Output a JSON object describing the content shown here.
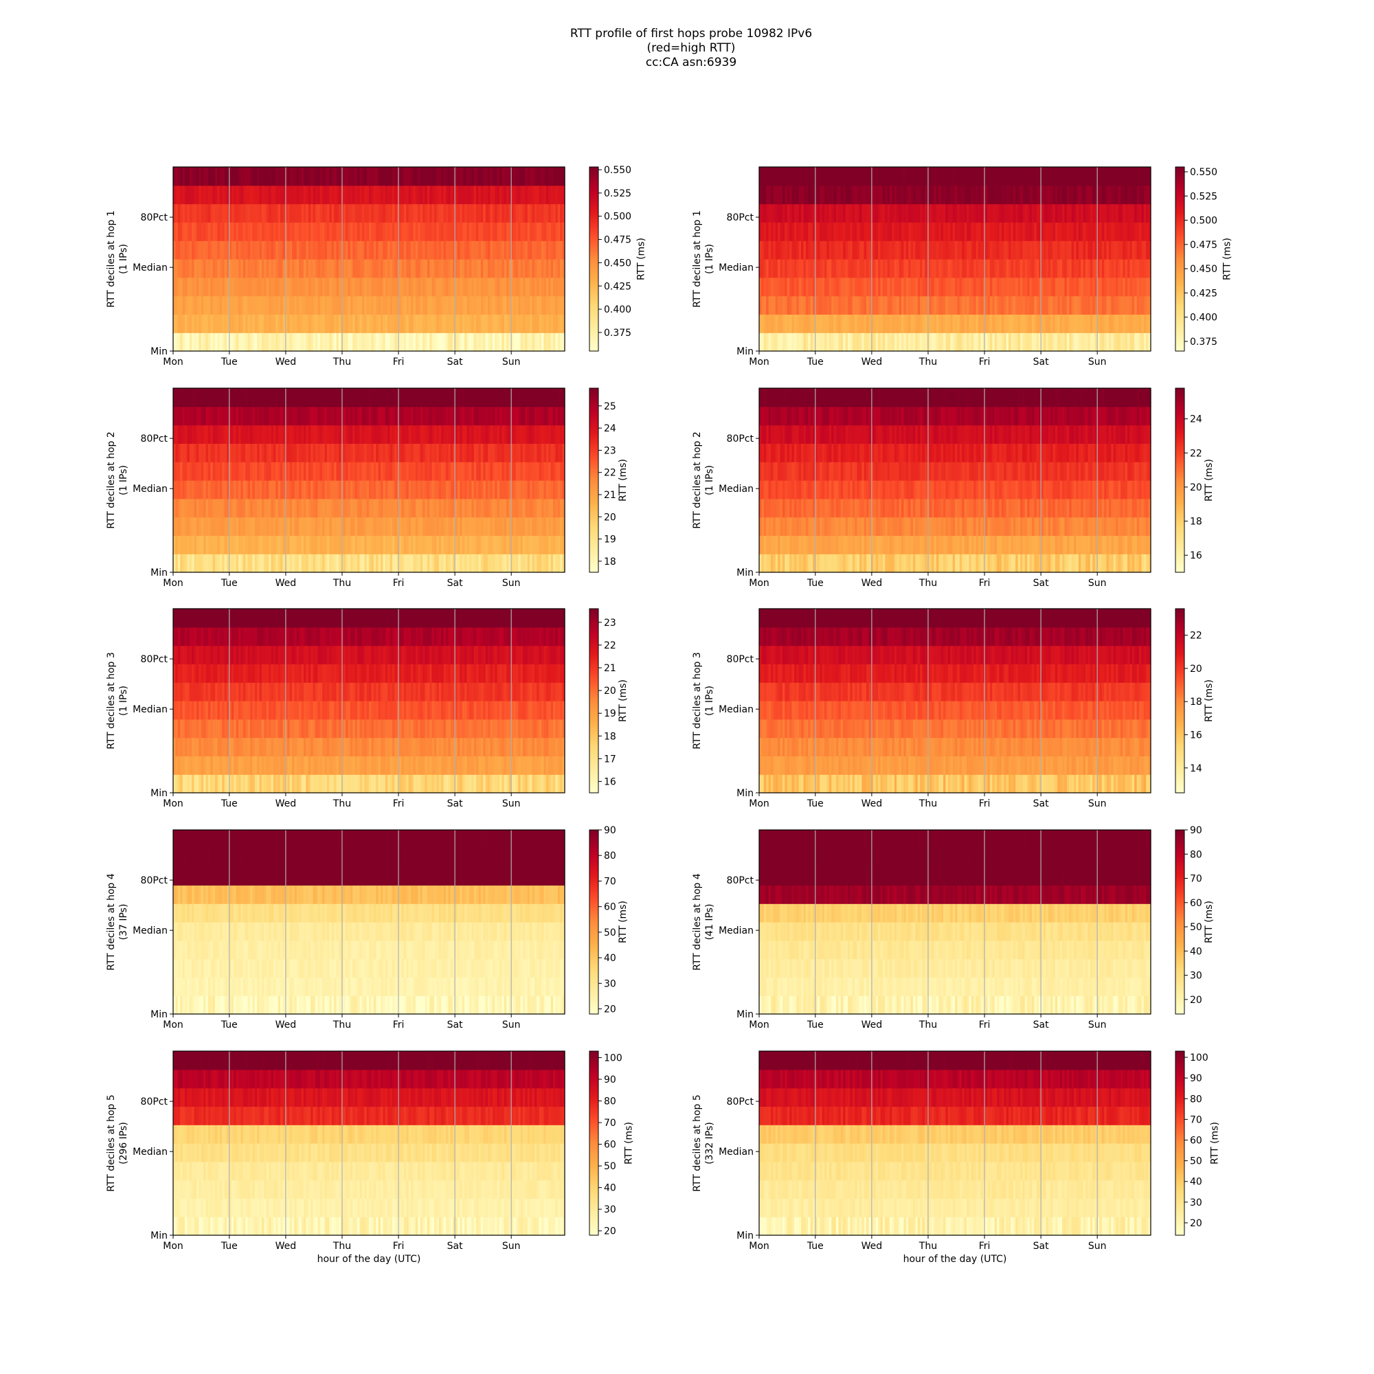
{
  "title_lines": [
    "RTT profile of first hops probe 10982 IPv6",
    "(red=high RTT)",
    "cc:CA asn:6939"
  ],
  "chart_data": [
    {
      "type": "heatmap",
      "hop": 1,
      "column": "left",
      "ylabel": [
        "RTT deciles at hop 1",
        "(1 IPs)"
      ],
      "xlabel": "",
      "xticks": [
        "Mon",
        "Tue",
        "Wed",
        "Thu",
        "Fri",
        "Sat",
        "Sun"
      ],
      "yticks": [
        "Min",
        "Median",
        "80Pct"
      ],
      "colorbar_label": "RTT (ms)",
      "vmin": 0.355,
      "vmax": 0.553,
      "colorbar_ticks": [
        "0.375",
        "0.400",
        "0.425",
        "0.450",
        "0.475",
        "0.500",
        "0.525",
        "0.550"
      ],
      "colorbar_tick_values": [
        0.375,
        0.4,
        0.425,
        0.45,
        0.475,
        0.5,
        0.525,
        0.55
      ],
      "colormap": "YlOrRd",
      "decile_levels": [
        0.37,
        0.43,
        0.44,
        0.45,
        0.46,
        0.47,
        0.48,
        0.49,
        0.51,
        0.55
      ]
    },
    {
      "type": "heatmap",
      "hop": 1,
      "column": "right",
      "ylabel": [
        "RTT deciles at hop 1",
        "(1 IPs)"
      ],
      "xlabel": "",
      "xticks": [
        "Mon",
        "Tue",
        "Wed",
        "Thu",
        "Fri",
        "Sat",
        "Sun"
      ],
      "yticks": [
        "Min",
        "Median",
        "80Pct"
      ],
      "colorbar_label": "RTT (ms)",
      "vmin": 0.365,
      "vmax": 0.555,
      "colorbar_ticks": [
        "0.375",
        "0.400",
        "0.425",
        "0.450",
        "0.475",
        "0.500",
        "0.525",
        "0.550"
      ],
      "colorbar_tick_values": [
        0.375,
        0.4,
        0.425,
        0.45,
        0.475,
        0.5,
        0.525,
        0.55
      ],
      "colormap": "YlOrRd",
      "decile_levels": [
        0.39,
        0.44,
        0.47,
        0.48,
        0.49,
        0.5,
        0.51,
        0.52,
        0.55,
        0.56
      ]
    },
    {
      "type": "heatmap",
      "hop": 2,
      "column": "left",
      "ylabel": [
        "RTT deciles at hop 2",
        "(1 IPs)"
      ],
      "xlabel": "",
      "xticks": [
        "Mon",
        "Tue",
        "Wed",
        "Thu",
        "Fri",
        "Sat",
        "Sun"
      ],
      "yticks": [
        "Min",
        "Median",
        "80Pct"
      ],
      "colorbar_label": "RTT (ms)",
      "vmin": 17.5,
      "vmax": 25.8,
      "colorbar_ticks": [
        "18",
        "19",
        "20",
        "21",
        "22",
        "23",
        "24",
        "25"
      ],
      "colorbar_tick_values": [
        18,
        19,
        20,
        21,
        22,
        23,
        24,
        25
      ],
      "colormap": "YlOrRd",
      "decile_levels": [
        19.2,
        20.6,
        21.2,
        21.7,
        22.3,
        22.8,
        23.3,
        24,
        25,
        26
      ]
    },
    {
      "type": "heatmap",
      "hop": 2,
      "column": "right",
      "ylabel": [
        "RTT deciles at hop 2",
        "(1 IPs)"
      ],
      "xlabel": "",
      "xticks": [
        "Mon",
        "Tue",
        "Wed",
        "Thu",
        "Fri",
        "Sat",
        "Sun"
      ],
      "yticks": [
        "Min",
        "Median",
        "80Pct"
      ],
      "colorbar_label": "RTT (ms)",
      "vmin": 15,
      "vmax": 25.8,
      "colorbar_ticks": [
        "16",
        "18",
        "20",
        "22",
        "24"
      ],
      "colorbar_tick_values": [
        16,
        18,
        20,
        22,
        24
      ],
      "colormap": "YlOrRd",
      "decile_levels": [
        18,
        19.5,
        20.5,
        21.2,
        21.8,
        22.4,
        23,
        23.8,
        24.8,
        26
      ]
    },
    {
      "type": "heatmap",
      "hop": 3,
      "column": "left",
      "ylabel": [
        "RTT deciles at hop 3",
        "(1 IPs)"
      ],
      "xlabel": "",
      "xticks": [
        "Mon",
        "Tue",
        "Wed",
        "Thu",
        "Fri",
        "Sat",
        "Sun"
      ],
      "yticks": [
        "Min",
        "Median",
        "80Pct"
      ],
      "colorbar_label": "RTT (ms)",
      "vmin": 15.5,
      "vmax": 23.6,
      "colorbar_ticks": [
        "16",
        "17",
        "18",
        "19",
        "20",
        "21",
        "22",
        "23"
      ],
      "colorbar_tick_values": [
        16,
        17,
        18,
        19,
        20,
        21,
        22,
        23
      ],
      "colormap": "YlOrRd",
      "decile_levels": [
        17.5,
        19,
        19.5,
        20,
        20.5,
        21,
        21.5,
        22,
        22.8,
        24
      ]
    },
    {
      "type": "heatmap",
      "hop": 3,
      "column": "right",
      "ylabel": [
        "RTT deciles at hop 3",
        "(1 IPs)"
      ],
      "xlabel": "",
      "xticks": [
        "Mon",
        "Tue",
        "Wed",
        "Thu",
        "Fri",
        "Sat",
        "Sun"
      ],
      "yticks": [
        "Min",
        "Median",
        "80Pct"
      ],
      "colorbar_label": "RTT (ms)",
      "vmin": 12.5,
      "vmax": 23.6,
      "colorbar_ticks": [
        "14",
        "16",
        "18",
        "20",
        "22"
      ],
      "colorbar_tick_values": [
        14,
        16,
        18,
        20,
        22
      ],
      "colormap": "YlOrRd",
      "decile_levels": [
        16,
        17.5,
        18,
        18.6,
        19.2,
        20,
        20.8,
        21.5,
        22.8,
        24
      ]
    },
    {
      "type": "heatmap",
      "hop": 4,
      "column": "left",
      "ylabel": [
        "RTT deciles at hop 4",
        "(37 IPs)"
      ],
      "xlabel": "",
      "xticks": [
        "Mon",
        "Tue",
        "Wed",
        "Thu",
        "Fri",
        "Sat",
        "Sun"
      ],
      "yticks": [
        "Min",
        "Median",
        "80Pct"
      ],
      "colorbar_label": "RTT (ms)",
      "vmin": 18,
      "vmax": 90,
      "colorbar_ticks": [
        "20",
        "30",
        "40",
        "50",
        "60",
        "70",
        "80",
        "90"
      ],
      "colorbar_tick_values": [
        20,
        30,
        40,
        50,
        60,
        70,
        80,
        90
      ],
      "colormap": "YlOrRd",
      "decile_levels": [
        22,
        24,
        25,
        26,
        28,
        33,
        42,
        92,
        92,
        92
      ]
    },
    {
      "type": "heatmap",
      "hop": 4,
      "column": "right",
      "ylabel": [
        "RTT deciles at hop 4",
        "(41 IPs)"
      ],
      "xlabel": "",
      "xticks": [
        "Mon",
        "Tue",
        "Wed",
        "Thu",
        "Fri",
        "Sat",
        "Sun"
      ],
      "yticks": [
        "Min",
        "Median",
        "80Pct"
      ],
      "colorbar_label": "RTT (ms)",
      "vmin": 14,
      "vmax": 90,
      "colorbar_ticks": [
        "20",
        "30",
        "40",
        "50",
        "60",
        "70",
        "80",
        "90"
      ],
      "colorbar_tick_values": [
        20,
        30,
        40,
        50,
        60,
        70,
        80,
        90
      ],
      "colormap": "YlOrRd",
      "decile_levels": [
        20,
        22,
        24,
        26,
        29,
        35,
        85,
        92,
        92,
        92
      ]
    },
    {
      "type": "heatmap",
      "hop": 5,
      "column": "left",
      "ylabel": [
        "RTT deciles at hop 5",
        "(296 IPs)"
      ],
      "xlabel": "hour of the day (UTC)",
      "xticks": [
        "Mon",
        "Tue",
        "Wed",
        "Thu",
        "Fri",
        "Sat",
        "Sun"
      ],
      "yticks": [
        "Min",
        "Median",
        "80Pct"
      ],
      "colorbar_label": "RTT (ms)",
      "vmin": 18,
      "vmax": 103,
      "colorbar_ticks": [
        "20",
        "30",
        "40",
        "50",
        "60",
        "70",
        "80",
        "90",
        "100"
      ],
      "colorbar_tick_values": [
        20,
        30,
        40,
        50,
        60,
        70,
        80,
        90,
        100
      ],
      "colormap": "YlOrRd",
      "decile_levels": [
        24,
        26,
        28,
        30,
        35,
        40,
        78,
        84,
        92,
        105
      ]
    },
    {
      "type": "heatmap",
      "hop": 5,
      "column": "right",
      "ylabel": [
        "RTT deciles at hop 5",
        "(332 IPs)"
      ],
      "xlabel": "hour of the day (UTC)",
      "xticks": [
        "Mon",
        "Tue",
        "Wed",
        "Thu",
        "Fri",
        "Sat",
        "Sun"
      ],
      "yticks": [
        "Min",
        "Median",
        "80Pct"
      ],
      "colorbar_label": "RTT (ms)",
      "vmin": 14,
      "vmax": 103,
      "colorbar_ticks": [
        "20",
        "30",
        "40",
        "50",
        "60",
        "70",
        "80",
        "90",
        "100"
      ],
      "colorbar_tick_values": [
        20,
        30,
        40,
        50,
        60,
        70,
        80,
        90,
        100
      ],
      "colormap": "YlOrRd",
      "decile_levels": [
        22,
        25,
        27,
        30,
        33,
        40,
        78,
        84,
        92,
        105
      ]
    }
  ]
}
